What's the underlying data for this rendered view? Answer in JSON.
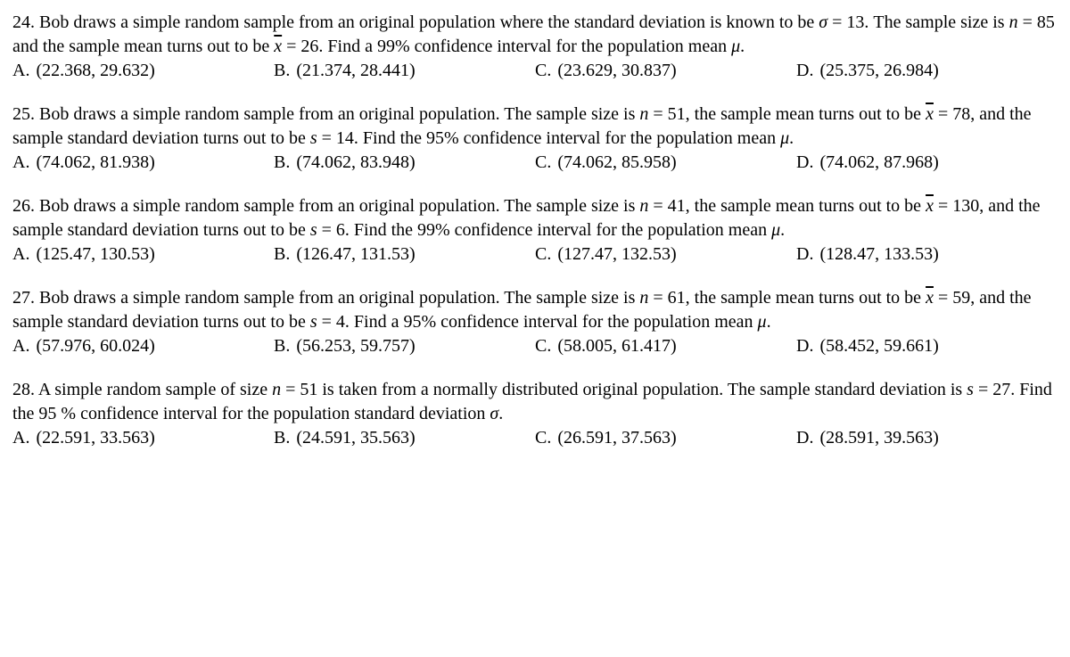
{
  "questions": [
    {
      "number": "24.",
      "stem_parts": [
        "Bob draws a simple random sample from an original population where the standard deviation is known to be ",
        {
          "italic": "σ"
        },
        " = 13.  The sample size is ",
        {
          "italic": "n"
        },
        " = 85 and the sample mean turns out to be ",
        {
          "xbar": true
        },
        " = 26.  Find a 99% confidence interval for the population mean ",
        {
          "italic": "μ"
        },
        "."
      ],
      "choices": [
        {
          "label": "A.",
          "text": "(22.368, 29.632)"
        },
        {
          "label": "B.",
          "text": "(21.374, 28.441)"
        },
        {
          "label": "C.",
          "text": "(23.629, 30.837)"
        },
        {
          "label": "D.",
          "text": "(25.375, 26.984)"
        }
      ]
    },
    {
      "number": "25.",
      "stem_parts": [
        "Bob draws a simple random sample from an original population.  The sample size is ",
        {
          "italic": "n"
        },
        " = 51, the sample mean turns out to be ",
        {
          "xbar": true
        },
        " = 78, and the sample standard deviation turns out to be ",
        {
          "italic": "s"
        },
        " = 14.  Find the 95% confidence interval for the population mean ",
        {
          "italic": "μ"
        },
        "."
      ],
      "choices": [
        {
          "label": "A.",
          "text": "(74.062, 81.938)"
        },
        {
          "label": "B.",
          "text": "(74.062, 83.948)"
        },
        {
          "label": "C.",
          "text": "(74.062, 85.958)"
        },
        {
          "label": "D.",
          "text": "(74.062, 87.968)"
        }
      ]
    },
    {
      "number": "26.",
      "stem_parts": [
        "Bob draws a simple random sample from an original population.  The sample size is ",
        {
          "italic": "n"
        },
        " = 41, the sample mean turns out to be ",
        {
          "xbar": true
        },
        " = 130, and the sample standard deviation turns out to be ",
        {
          "italic": "s"
        },
        " = 6.  Find the 99% confidence interval for the population mean ",
        {
          "italic": "μ"
        },
        "."
      ],
      "choices": [
        {
          "label": "A.",
          "text": "(125.47, 130.53)"
        },
        {
          "label": "B.",
          "text": "(126.47, 131.53)"
        },
        {
          "label": "C.",
          "text": "(127.47, 132.53)"
        },
        {
          "label": "D.",
          "text": "(128.47, 133.53)"
        }
      ]
    },
    {
      "number": "27.",
      "stem_parts": [
        "Bob draws a simple random sample from an original population.  The sample size is ",
        {
          "italic": "n"
        },
        " = 61, the sample mean turns out to be ",
        {
          "xbar": true
        },
        " = 59, and the sample standard deviation turns out to be ",
        {
          "italic": "s"
        },
        " = 4.  Find a 95% confidence interval for the population mean ",
        {
          "italic": "μ"
        },
        "."
      ],
      "choices": [
        {
          "label": "A.",
          "text": "(57.976, 60.024)"
        },
        {
          "label": "B.",
          "text": "(56.253, 59.757)"
        },
        {
          "label": "C.",
          "text": "(58.005, 61.417)"
        },
        {
          "label": "D.",
          "text": "(58.452, 59.661)"
        }
      ]
    },
    {
      "number": "28.",
      "stem_parts": [
        "A simple random sample of size ",
        {
          "italic": "n"
        },
        " = 51 is taken from a normally distributed original population.  The sample standard deviation is ",
        {
          "italic": "s"
        },
        " = 27.  Find the 95 % confidence interval for the population standard deviation ",
        {
          "italic": "σ"
        },
        "."
      ],
      "choices": [
        {
          "label": "A.",
          "text": "(22.591, 33.563)"
        },
        {
          "label": "B.",
          "text": "(24.591, 35.563)"
        },
        {
          "label": "C.",
          "text": "(26.591, 37.563)"
        },
        {
          "label": "D.",
          "text": "(28.591, 39.563)"
        }
      ]
    }
  ]
}
